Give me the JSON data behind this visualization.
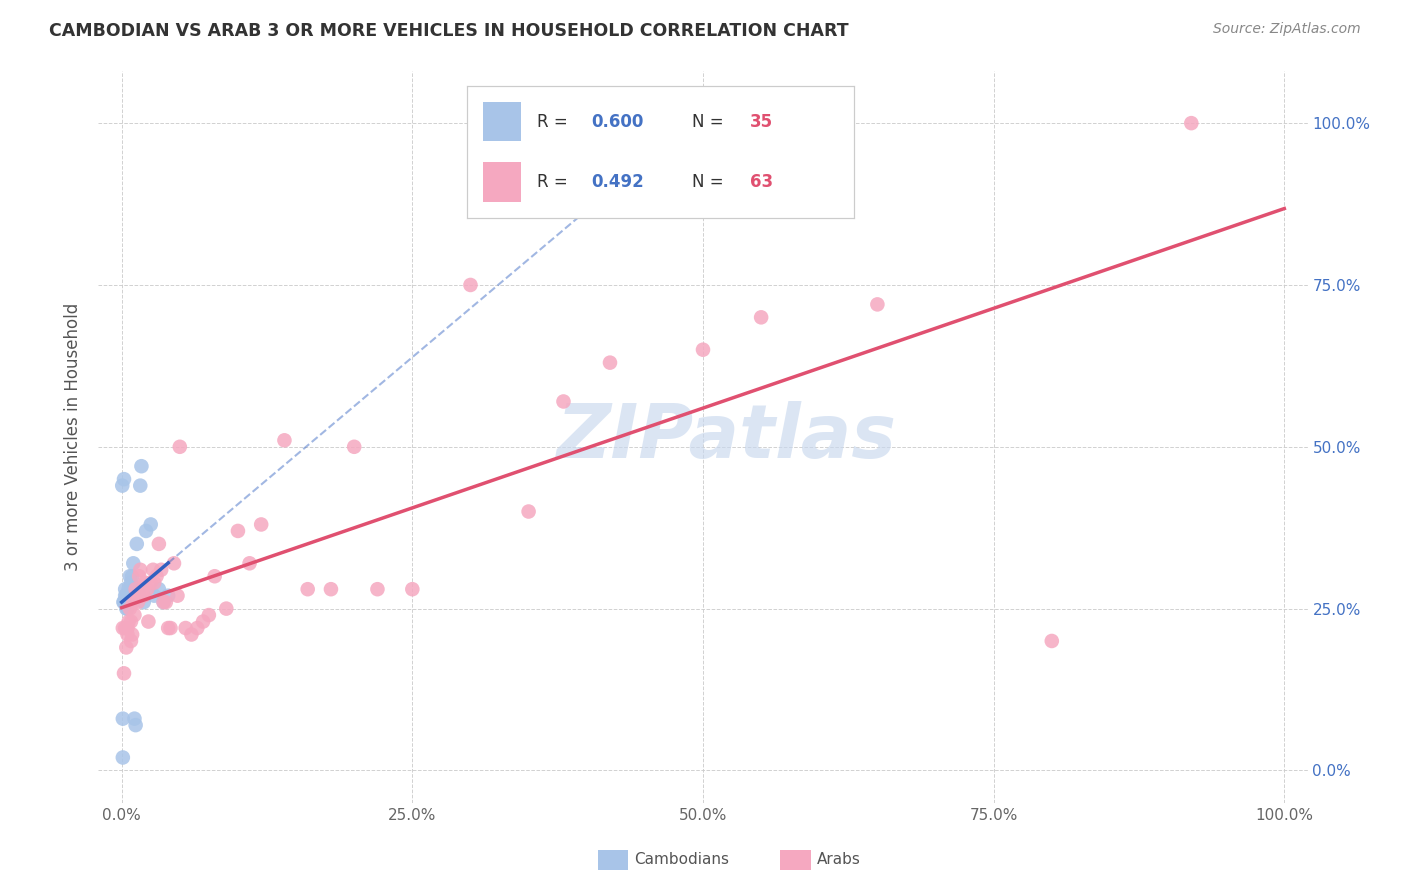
{
  "title": "CAMBODIAN VS ARAB 3 OR MORE VEHICLES IN HOUSEHOLD CORRELATION CHART",
  "source": "Source: ZipAtlas.com",
  "ylabel": "3 or more Vehicles in Household",
  "watermark": "ZIPatlas",
  "cambodian_color": "#a8c4e8",
  "arab_color": "#f5a8c0",
  "cambodian_line_color": "#3060c0",
  "arab_line_color": "#e05070",
  "camb_R": "0.600",
  "camb_N": "35",
  "arab_R": "0.492",
  "arab_N": "63",
  "R_color": "#4472c4",
  "N_color": "#e05070",
  "camb_x": [
    0.0005,
    0.001,
    0.001,
    0.0015,
    0.002,
    0.002,
    0.003,
    0.003,
    0.003,
    0.004,
    0.004,
    0.005,
    0.005,
    0.006,
    0.006,
    0.007,
    0.007,
    0.008,
    0.008,
    0.009,
    0.009,
    0.01,
    0.011,
    0.012,
    0.013,
    0.015,
    0.016,
    0.017,
    0.019,
    0.021,
    0.025,
    0.028,
    0.032,
    0.036,
    0.04
  ],
  "camb_y": [
    0.44,
    0.02,
    0.08,
    0.26,
    0.26,
    0.45,
    0.26,
    0.27,
    0.28,
    0.27,
    0.25,
    0.27,
    0.25,
    0.26,
    0.28,
    0.27,
    0.3,
    0.26,
    0.29,
    0.28,
    0.3,
    0.32,
    0.08,
    0.07,
    0.35,
    0.27,
    0.44,
    0.47,
    0.26,
    0.37,
    0.38,
    0.27,
    0.28,
    0.26,
    0.27
  ],
  "arab_x": [
    0.001,
    0.002,
    0.003,
    0.004,
    0.005,
    0.005,
    0.006,
    0.007,
    0.008,
    0.008,
    0.009,
    0.01,
    0.011,
    0.012,
    0.013,
    0.014,
    0.015,
    0.015,
    0.016,
    0.017,
    0.018,
    0.019,
    0.02,
    0.022,
    0.023,
    0.025,
    0.027,
    0.028,
    0.03,
    0.032,
    0.034,
    0.036,
    0.038,
    0.04,
    0.042,
    0.045,
    0.048,
    0.05,
    0.055,
    0.06,
    0.065,
    0.07,
    0.075,
    0.08,
    0.09,
    0.1,
    0.11,
    0.12,
    0.14,
    0.16,
    0.18,
    0.2,
    0.22,
    0.25,
    0.3,
    0.35,
    0.38,
    0.42,
    0.5,
    0.55,
    0.65,
    0.8,
    0.92
  ],
  "arab_y": [
    0.22,
    0.15,
    0.22,
    0.19,
    0.21,
    0.22,
    0.23,
    0.25,
    0.23,
    0.2,
    0.21,
    0.26,
    0.24,
    0.28,
    0.27,
    0.26,
    0.27,
    0.3,
    0.31,
    0.27,
    0.28,
    0.27,
    0.29,
    0.28,
    0.23,
    0.29,
    0.31,
    0.29,
    0.3,
    0.35,
    0.31,
    0.26,
    0.26,
    0.22,
    0.22,
    0.32,
    0.27,
    0.5,
    0.22,
    0.21,
    0.22,
    0.23,
    0.24,
    0.3,
    0.25,
    0.37,
    0.32,
    0.38,
    0.51,
    0.28,
    0.28,
    0.5,
    0.28,
    0.28,
    0.75,
    0.4,
    0.57,
    0.63,
    0.65,
    0.7,
    0.72,
    0.2,
    1.0
  ],
  "xlim": [
    0.0,
    1.0
  ],
  "ylim": [
    0.0,
    1.0
  ],
  "x_ticks": [
    0.0,
    0.25,
    0.5,
    0.75,
    1.0
  ],
  "y_ticks": [
    0.0,
    0.25,
    0.5,
    0.75,
    1.0
  ],
  "x_tick_labels": [
    "0.0%",
    "25.0%",
    "50.0%",
    "75.0%",
    "100.0%"
  ],
  "y_tick_labels": [
    "0.0%",
    "25.0%",
    "50.0%",
    "75.0%",
    "100.0%"
  ]
}
